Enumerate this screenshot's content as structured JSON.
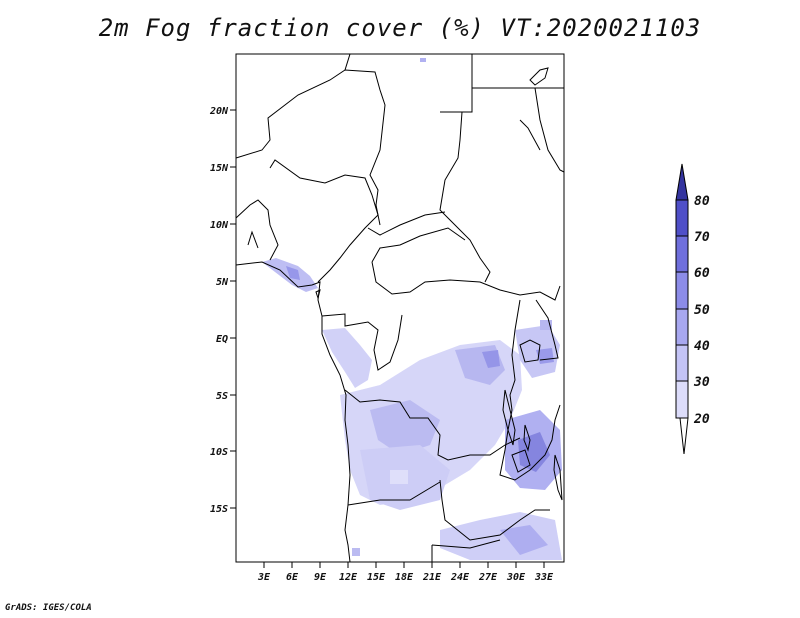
{
  "title": "2m Fog fraction cover (%) VT:2020021103",
  "credit": "GrADS: IGES/COLA",
  "map": {
    "lat_ticks": [
      "20N",
      "15N",
      "10N",
      "5N",
      "EQ",
      "5S",
      "10S",
      "15S"
    ],
    "lon_ticks": [
      "3E",
      "6E",
      "9E",
      "12E",
      "15E",
      "18E",
      "21E",
      "24E",
      "27E",
      "30E",
      "33E"
    ]
  },
  "colorbar": {
    "labels": [
      "20",
      "30",
      "40",
      "50",
      "60",
      "70",
      "80"
    ],
    "colors": [
      "#dcdcfa",
      "#c4c4f6",
      "#a8a8f0",
      "#8c8ce8",
      "#6f6fdc",
      "#4f4fc8",
      "#34349f"
    ]
  }
}
